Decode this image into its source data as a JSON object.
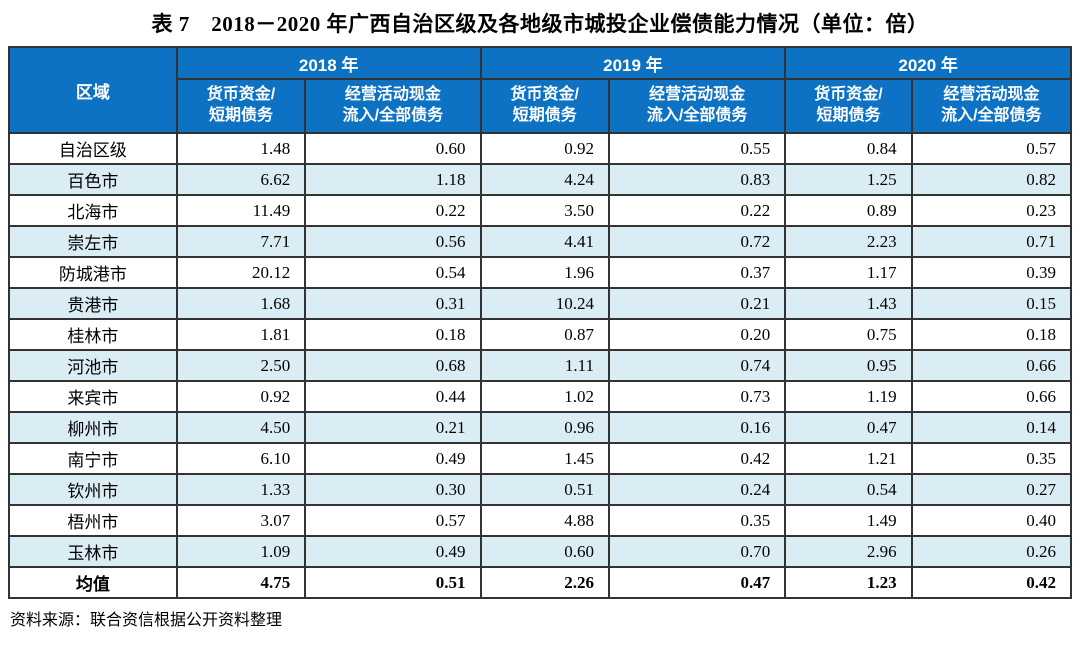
{
  "title": "表 7　2018－2020 年广西自治区级及各地级市城投企业偿债能力情况（单位：倍）",
  "table": {
    "region_header": "区域",
    "year_groups": [
      {
        "year": "2018 年",
        "sub": [
          "货币资金/\n短期债务",
          "经营活动现金\n流入/全部债务"
        ]
      },
      {
        "year": "2019 年",
        "sub": [
          "货币资金/\n短期债务",
          "经营活动现金\n流入/全部债务"
        ]
      },
      {
        "year": "2020 年",
        "sub": [
          "货币资金/\n短期债务",
          "经营活动现金\n流入/全部债务"
        ]
      }
    ],
    "rows": [
      {
        "region": "自治区级",
        "values": [
          "1.48",
          "0.60",
          "0.92",
          "0.55",
          "0.84",
          "0.57"
        ],
        "bold": false
      },
      {
        "region": "百色市",
        "values": [
          "6.62",
          "1.18",
          "4.24",
          "0.83",
          "1.25",
          "0.82"
        ],
        "bold": false
      },
      {
        "region": "北海市",
        "values": [
          "11.49",
          "0.22",
          "3.50",
          "0.22",
          "0.89",
          "0.23"
        ],
        "bold": false
      },
      {
        "region": "崇左市",
        "values": [
          "7.71",
          "0.56",
          "4.41",
          "0.72",
          "2.23",
          "0.71"
        ],
        "bold": false
      },
      {
        "region": "防城港市",
        "values": [
          "20.12",
          "0.54",
          "1.96",
          "0.37",
          "1.17",
          "0.39"
        ],
        "bold": false
      },
      {
        "region": "贵港市",
        "values": [
          "1.68",
          "0.31",
          "10.24",
          "0.21",
          "1.43",
          "0.15"
        ],
        "bold": false
      },
      {
        "region": "桂林市",
        "values": [
          "1.81",
          "0.18",
          "0.87",
          "0.20",
          "0.75",
          "0.18"
        ],
        "bold": false
      },
      {
        "region": "河池市",
        "values": [
          "2.50",
          "0.68",
          "1.11",
          "0.74",
          "0.95",
          "0.66"
        ],
        "bold": false
      },
      {
        "region": "来宾市",
        "values": [
          "0.92",
          "0.44",
          "1.02",
          "0.73",
          "1.19",
          "0.66"
        ],
        "bold": false
      },
      {
        "region": "柳州市",
        "values": [
          "4.50",
          "0.21",
          "0.96",
          "0.16",
          "0.47",
          "0.14"
        ],
        "bold": false
      },
      {
        "region": "南宁市",
        "values": [
          "6.10",
          "0.49",
          "1.45",
          "0.42",
          "1.21",
          "0.35"
        ],
        "bold": false
      },
      {
        "region": "钦州市",
        "values": [
          "1.33",
          "0.30",
          "0.51",
          "0.24",
          "0.54",
          "0.27"
        ],
        "bold": false
      },
      {
        "region": "梧州市",
        "values": [
          "3.07",
          "0.57",
          "4.88",
          "0.35",
          "1.49",
          "0.40"
        ],
        "bold": false
      },
      {
        "region": "玉林市",
        "values": [
          "1.09",
          "0.49",
          "0.60",
          "0.70",
          "2.96",
          "0.26"
        ],
        "bold": false
      },
      {
        "region": "均值",
        "values": [
          "4.75",
          "0.51",
          "2.26",
          "0.47",
          "1.23",
          "0.42"
        ],
        "bold": true
      }
    ]
  },
  "source_note": "资料来源：联合资信根据公开资料整理",
  "colors": {
    "header_bg": "#0d72c4",
    "alt_row_bg": "#daedf4",
    "border": "#333333",
    "header_text": "#ffffff"
  }
}
